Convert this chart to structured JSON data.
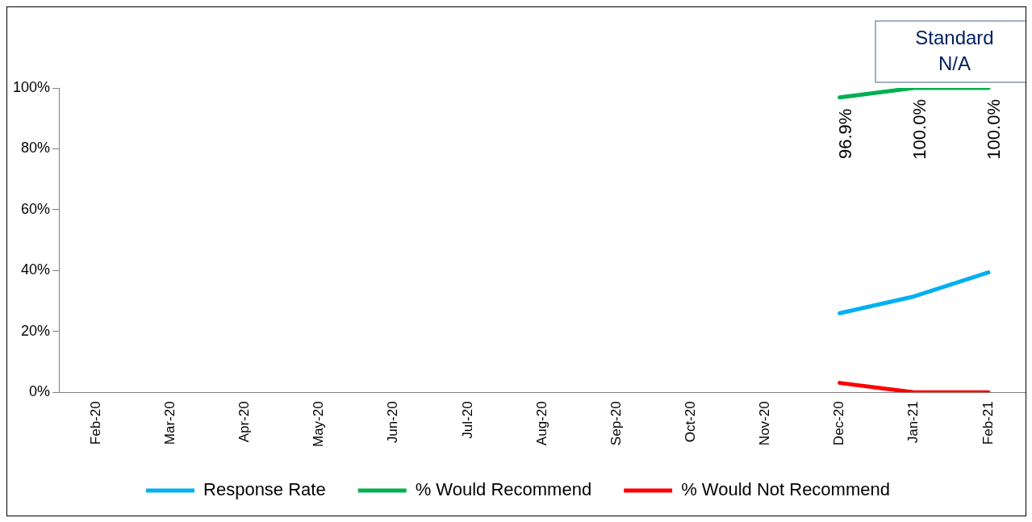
{
  "chart_data": {
    "type": "line",
    "categories": [
      "Feb-20",
      "Mar-20",
      "Apr-20",
      "May-20",
      "Jun-20",
      "Jul-20",
      "Aug-20",
      "Sep-20",
      "Oct-20",
      "Nov-20",
      "Dec-20",
      "Jan-21",
      "Feb-21"
    ],
    "series": [
      {
        "name": "Response Rate",
        "color": "#00b0f0",
        "values": [
          null,
          null,
          null,
          null,
          null,
          null,
          null,
          null,
          null,
          null,
          26.0,
          31.5,
          39.4
        ]
      },
      {
        "name": "% Would Recommend",
        "color": "#00b050",
        "values": [
          null,
          null,
          null,
          null,
          null,
          null,
          null,
          null,
          null,
          null,
          96.9,
          100.0,
          100.0
        ],
        "value_labels": [
          null,
          null,
          null,
          null,
          null,
          null,
          null,
          null,
          null,
          null,
          "96.9%",
          "100.0%",
          "100.0%"
        ]
      },
      {
        "name": "% Would Not Recommend",
        "color": "#ff0000",
        "values": [
          null,
          null,
          null,
          null,
          null,
          null,
          null,
          null,
          null,
          null,
          3.1,
          0.0,
          0.0
        ]
      }
    ],
    "ylim": [
      0,
      100
    ],
    "yticks": [
      {
        "value": 0,
        "label": "0%"
      },
      {
        "value": 20,
        "label": "20%"
      },
      {
        "value": 40,
        "label": "40%"
      },
      {
        "value": 60,
        "label": "60%"
      },
      {
        "value": 80,
        "label": "80%"
      },
      {
        "value": 100,
        "label": "100%"
      }
    ],
    "annotations": [
      "Standard\nN/A"
    ],
    "legend": "bottom",
    "grid": false,
    "marker": "none",
    "line_style": "solid"
  }
}
